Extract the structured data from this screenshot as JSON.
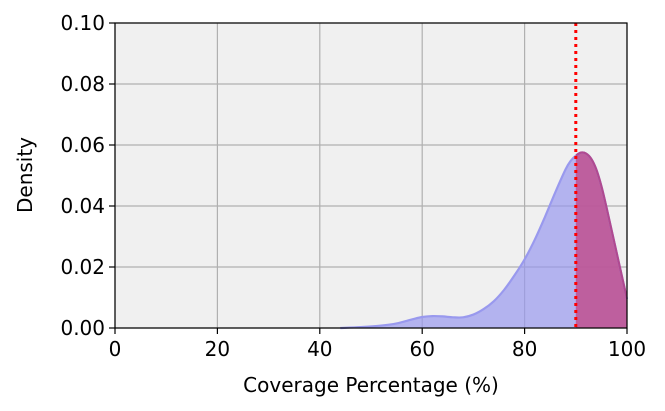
{
  "chart_data": {
    "type": "area",
    "xlabel": "Coverage Percentage (%)",
    "ylabel": "Density",
    "xlim": [
      0,
      100
    ],
    "ylim": [
      0,
      0.1
    ],
    "xticks": [
      0,
      20,
      40,
      60,
      80,
      100
    ],
    "xtick_labels": [
      "0",
      "20",
      "40",
      "60",
      "80",
      "100"
    ],
    "yticks": [
      0.0,
      0.02,
      0.04,
      0.06,
      0.08,
      0.1
    ],
    "ytick_labels": [
      "0.00",
      "0.02",
      "0.04",
      "0.06",
      "0.08",
      "0.10"
    ],
    "grid": true,
    "plot_background": "#f0f0f0",
    "series": [
      {
        "x": [
          44,
          48,
          52,
          55,
          58,
          60,
          62,
          64,
          66,
          68,
          70,
          72,
          74,
          76,
          78,
          80,
          82,
          84,
          86,
          88,
          89,
          90,
          91,
          92,
          93,
          94,
          95,
          96,
          97,
          98,
          99,
          100
        ],
        "values": [
          0.0,
          0.0003,
          0.0008,
          0.0015,
          0.0028,
          0.0036,
          0.0039,
          0.0038,
          0.0035,
          0.0035,
          0.0044,
          0.0062,
          0.0088,
          0.0125,
          0.0172,
          0.0225,
          0.029,
          0.0365,
          0.0445,
          0.052,
          0.0548,
          0.0565,
          0.0575,
          0.0572,
          0.0555,
          0.052,
          0.0465,
          0.0395,
          0.032,
          0.0245,
          0.017,
          0.0095
        ],
        "fill_color": "#9999ee",
        "highlight_color": "#c0508f"
      }
    ],
    "threshold": {
      "x": 90,
      "color": "#ff0000",
      "style": "dotted"
    }
  }
}
